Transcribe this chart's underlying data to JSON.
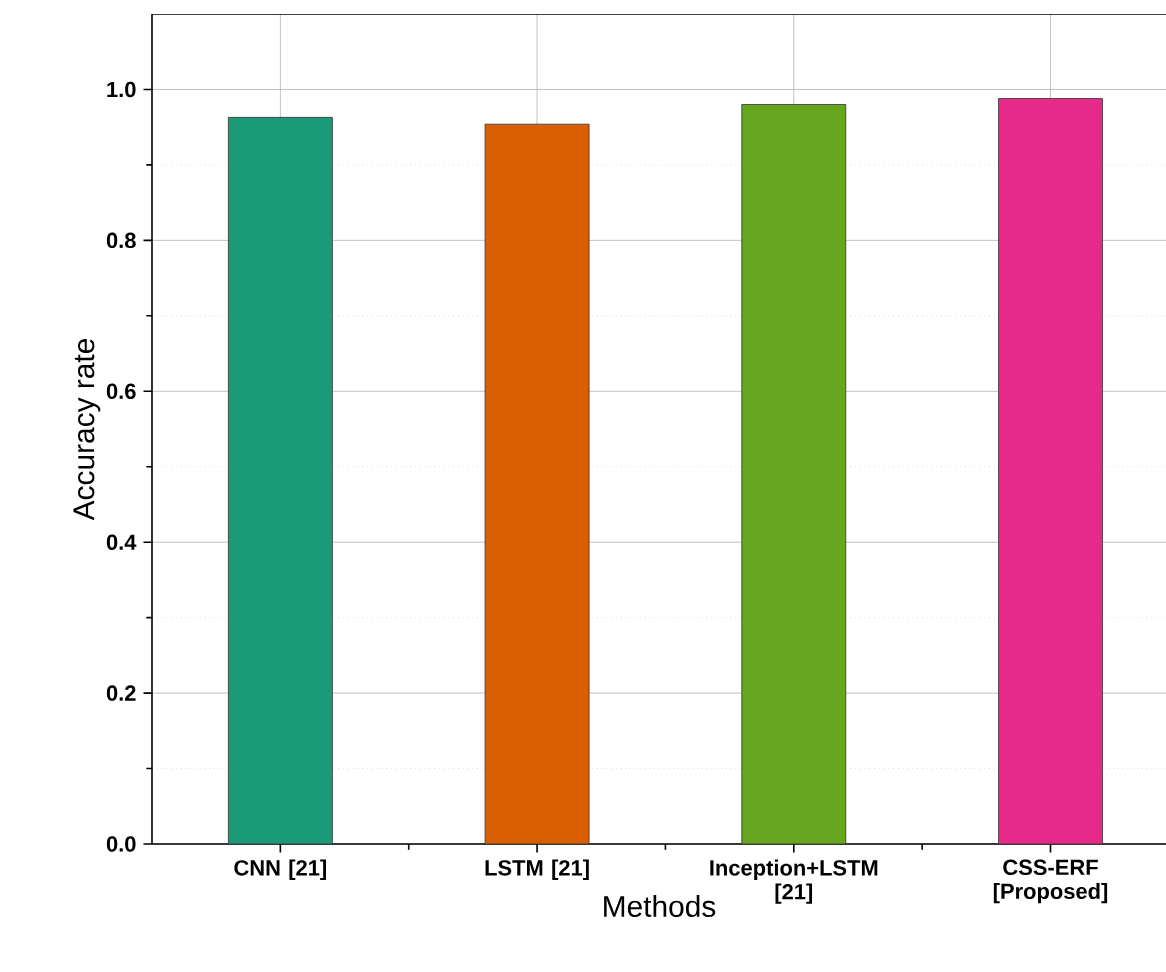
{
  "chart_data": {
    "type": "bar",
    "xlabel": "Methods",
    "ylabel": "Accuracy rate",
    "categories": [
      "CNN [21]",
      "LSTM [21]",
      "Inception+LSTM [21]",
      "CSS-ERF [Proposed]"
    ],
    "values": [
      0.963,
      0.954,
      0.98,
      0.988
    ],
    "colors": [
      "#1b9a77",
      "#d95f02",
      "#66a61e",
      "#e7298a"
    ],
    "ylim": [
      0,
      1.1
    ],
    "yticks": [
      {
        "value": 0,
        "label": "0.0"
      },
      0.2,
      0.4,
      0.6,
      0.8,
      {
        "value": 1,
        "label": "1.0"
      }
    ],
    "grid": true
  }
}
